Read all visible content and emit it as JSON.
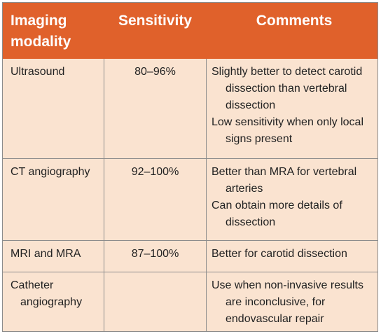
{
  "table": {
    "headers": {
      "modality": "Imaging modality",
      "sensitivity": "Sensitivity",
      "comments": "Comments"
    },
    "rows": [
      {
        "modality": "Ultrasound",
        "sensitivity": "80–96%",
        "comments": [
          "Slightly better to detect carotid dissection than vertebral dissection",
          "Low sensitivity when only local signs present"
        ]
      },
      {
        "modality": "CT angiography",
        "sensitivity": "92–100%",
        "comments": [
          "Better than MRA for vertebral arteries",
          "Can obtain more details of dissection"
        ]
      },
      {
        "modality": "MRI and MRA",
        "sensitivity": "87–100%",
        "comments": [
          "Better for carotid dissection"
        ]
      },
      {
        "modality": "Catheter angiography",
        "sensitivity": "",
        "comments": [
          "Use when non-invasive results are inconclusive, for endovascular repair"
        ]
      }
    ]
  },
  "colors": {
    "header_bg": "#e0612b",
    "header_text": "#ffffff",
    "body_bg": "#fae3d0",
    "rule": "#8c8c8c"
  }
}
